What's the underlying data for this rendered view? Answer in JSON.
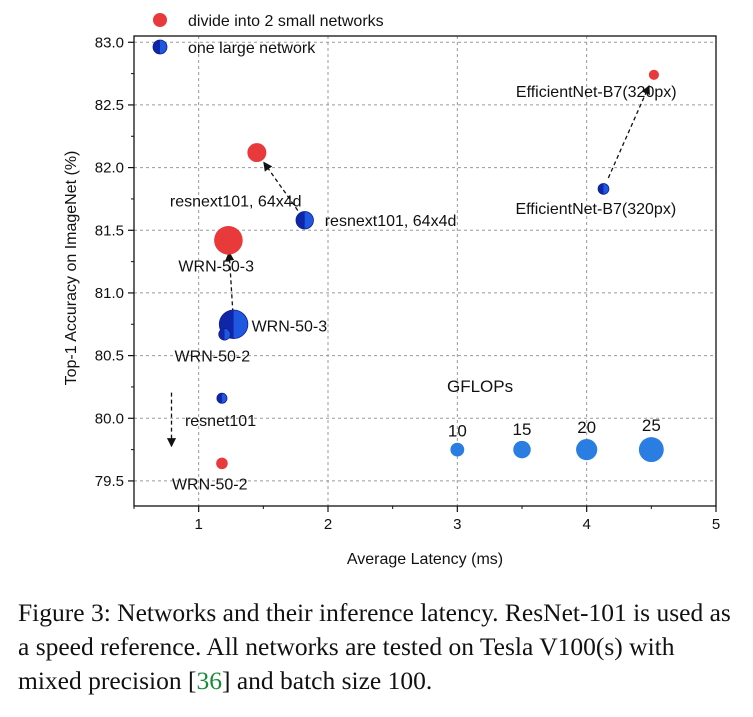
{
  "chart_data": {
    "type": "scatter",
    "xlabel": "Average Latency (ms)",
    "ylabel": "Top-1 Accuracy on ImageNet (%)",
    "xlim": [
      0.5,
      5.0
    ],
    "ylim": [
      79.3,
      83.05
    ],
    "x_ticks": [
      "1",
      "2",
      "3",
      "4",
      "5"
    ],
    "y_ticks": [
      "79.5",
      "80.0",
      "80.5",
      "81.0",
      "81.5",
      "82.0",
      "82.5",
      "83.0"
    ],
    "grid": true,
    "legend_position": "top-left",
    "legend": [
      {
        "label": "divide into 2 small networks",
        "color": "#e8393b",
        "marker": "circle"
      },
      {
        "label": "one large network",
        "color": "#1f58e0",
        "marker": "half-circle"
      }
    ],
    "series": [
      {
        "name": "divide into 2 small networks",
        "color": "#e8393b",
        "points": [
          {
            "x": 4.52,
            "y": 82.74,
            "gflops": 5,
            "label": "EfficientNet-B7(320px)"
          },
          {
            "x": 1.45,
            "y": 82.12,
            "gflops": 17,
            "label": "resnext101, 64x4d"
          },
          {
            "x": 1.23,
            "y": 81.42,
            "gflops": 30,
            "label": "WRN-50-3"
          },
          {
            "x": 1.18,
            "y": 79.64,
            "gflops": 7,
            "label": "WRN-50-2"
          }
        ]
      },
      {
        "name": "one large network",
        "color": "#1f58e0",
        "points": [
          {
            "x": 4.13,
            "y": 81.83,
            "gflops": 6,
            "label": "EfficientNet-B7(320px)"
          },
          {
            "x": 1.82,
            "y": 81.58,
            "gflops": 15,
            "label": "resnext101, 64x4d"
          },
          {
            "x": 1.27,
            "y": 80.75,
            "gflops": 30,
            "label": "WRN-50-3"
          },
          {
            "x": 1.2,
            "y": 80.67,
            "gflops": 7,
            "label": "WRN-50-2"
          },
          {
            "x": 1.18,
            "y": 80.16,
            "gflops": 5,
            "label": "resnet101"
          }
        ]
      }
    ],
    "arrows": [
      {
        "from": [
          4.13,
          81.83
        ],
        "to": [
          4.52,
          82.74
        ]
      },
      {
        "from": [
          1.82,
          81.58
        ],
        "to": [
          1.45,
          82.12
        ]
      },
      {
        "from": [
          1.27,
          80.75
        ],
        "to": [
          1.23,
          81.42
        ]
      },
      {
        "from": [
          0.79,
          80.3
        ],
        "to": [
          0.79,
          79.68
        ]
      }
    ],
    "size_reference": {
      "title": "GFLOPs",
      "color": "#2a7de1",
      "items": [
        {
          "gflops": 10,
          "label": "10",
          "x": 3.0,
          "y": 79.75
        },
        {
          "gflops": 15,
          "label": "15",
          "x": 3.5,
          "y": 79.75
        },
        {
          "gflops": 20,
          "label": "20",
          "x": 4.0,
          "y": 79.75
        },
        {
          "gflops": 25,
          "label": "25",
          "x": 4.5,
          "y": 79.75
        }
      ]
    }
  },
  "caption": {
    "prefix": "Figure 3: Networks and their inference latency. ResNet-101 is used as a speed reference. All networks are tested on Tesla V100(s) with mixed precision [",
    "citation": "36",
    "suffix": "] and batch size 100."
  }
}
